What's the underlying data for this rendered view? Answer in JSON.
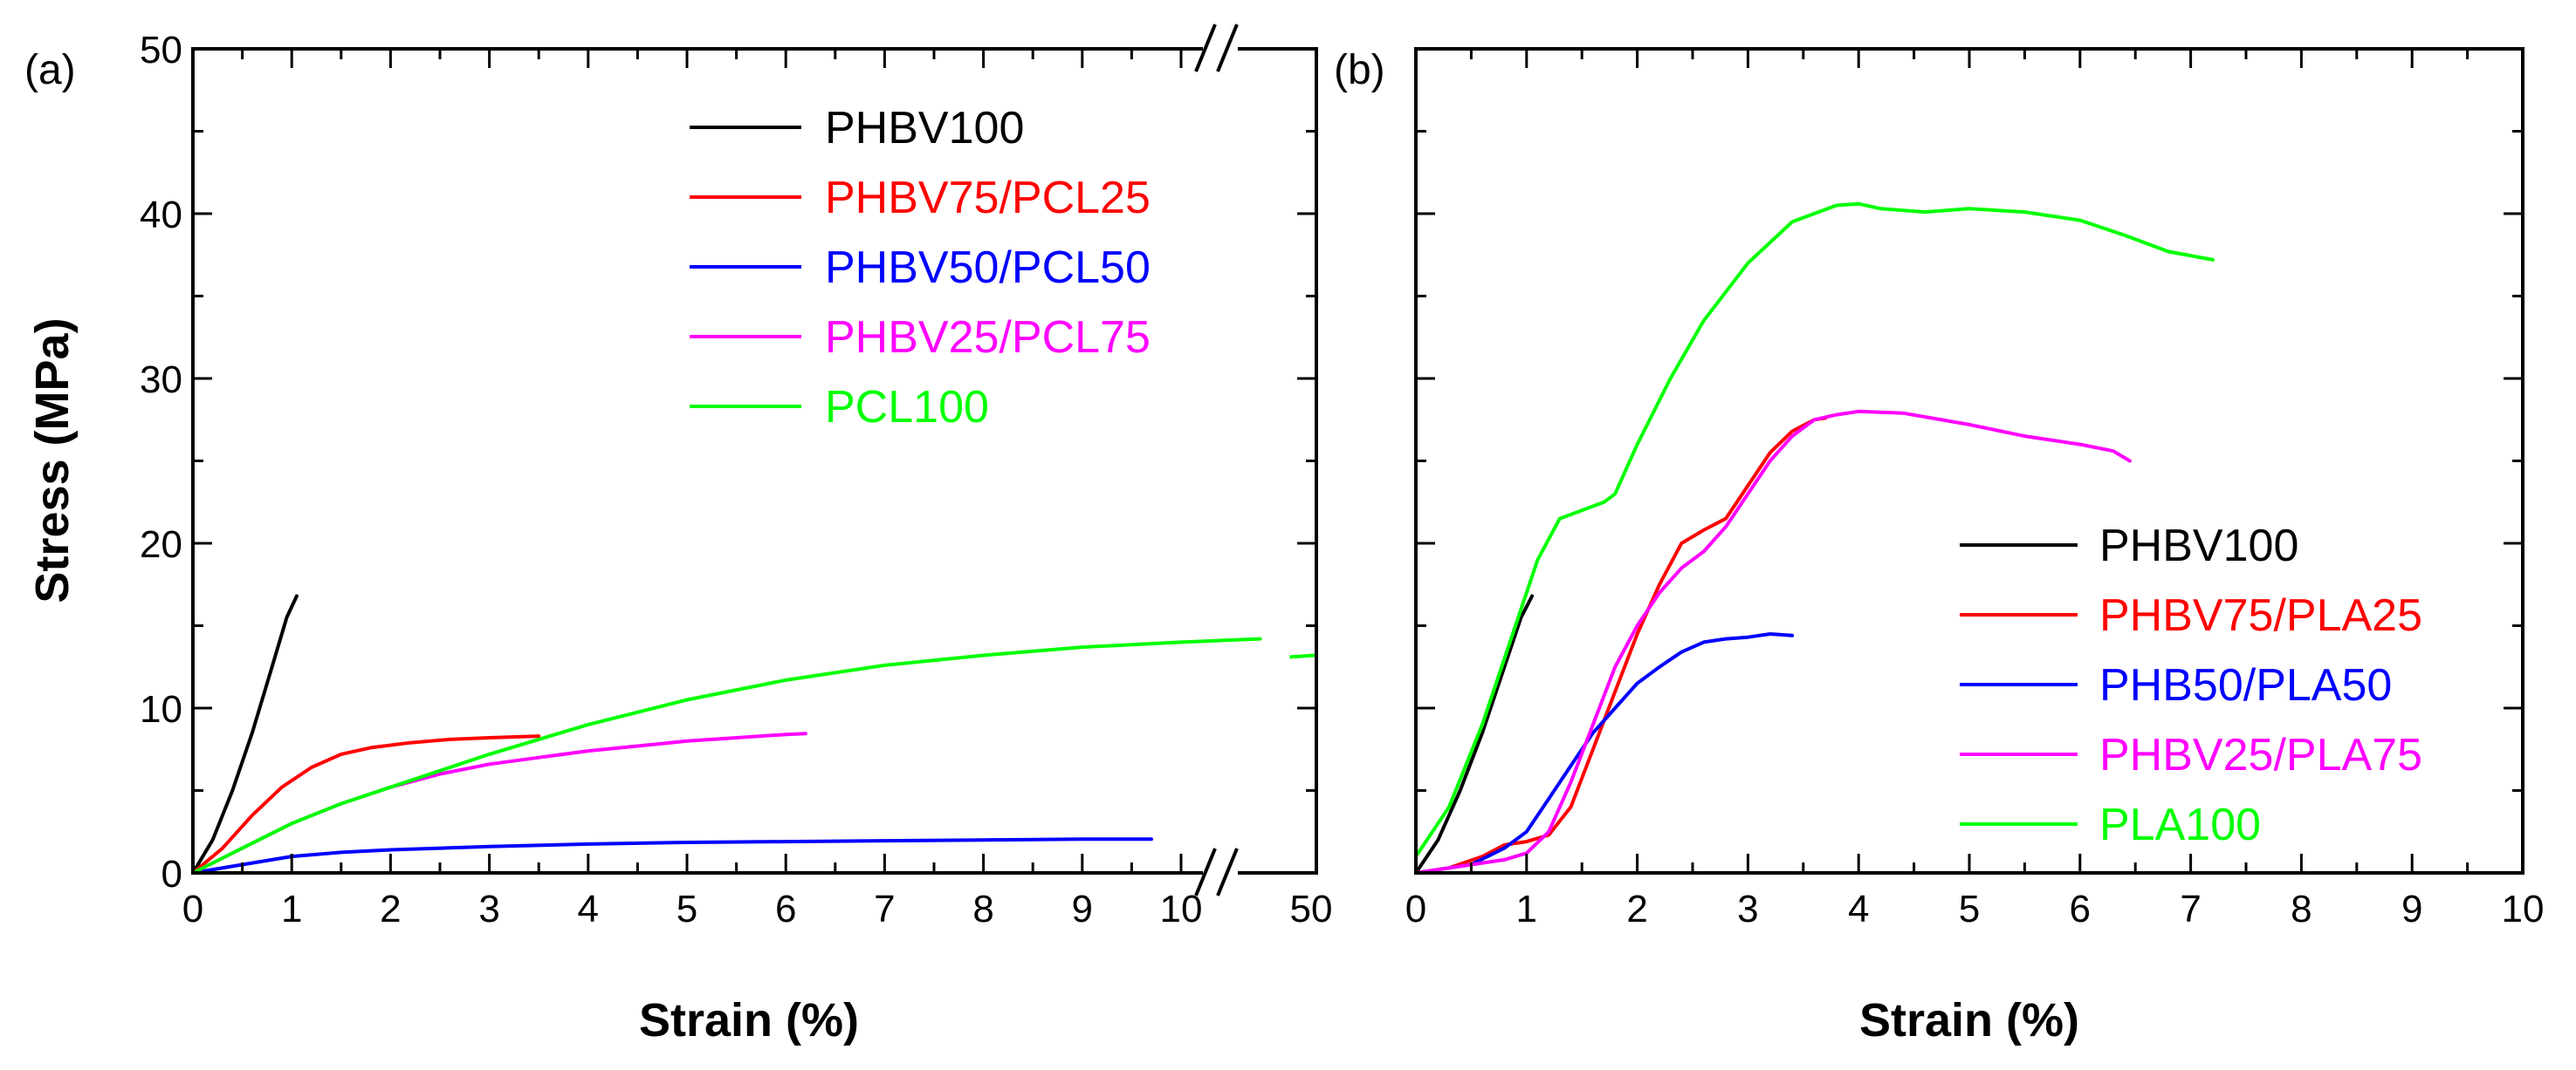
{
  "chart_data": [
    {
      "panel_label": "(a)",
      "type": "line",
      "xlabel": "Strain (%)",
      "ylabel": "Stress (MPa)",
      "xlim": [
        0,
        11.4
      ],
      "ylim": [
        0,
        50
      ],
      "axis_break": {
        "at": 11.0,
        "lower_ticks_end": 10,
        "upper_tick_label": "50"
      },
      "x_tick_labels": [
        "0",
        "1",
        "2",
        "3",
        "4",
        "5",
        "6",
        "7",
        "8",
        "9",
        "10",
        "50"
      ],
      "y_tick_labels": [
        "0",
        "10",
        "20",
        "30",
        "40",
        "50"
      ],
      "legend_position": "top-right",
      "series": [
        {
          "name": "PHBV100",
          "color": "#000000",
          "points": [
            [
              0,
              0
            ],
            [
              0.2,
              2
            ],
            [
              0.4,
              5
            ],
            [
              0.6,
              8.5
            ],
            [
              0.8,
              12.5
            ],
            [
              0.95,
              15.5
            ],
            [
              1.05,
              16.8
            ]
          ]
        },
        {
          "name": "PHBV75/PCL25",
          "color": "#ff0000",
          "points": [
            [
              0,
              0
            ],
            [
              0.3,
              1.5
            ],
            [
              0.6,
              3.5
            ],
            [
              0.9,
              5.2
            ],
            [
              1.2,
              6.4
            ],
            [
              1.5,
              7.2
            ],
            [
              1.8,
              7.6
            ],
            [
              2.2,
              7.9
            ],
            [
              2.6,
              8.1
            ],
            [
              3.0,
              8.2
            ],
            [
              3.5,
              8.3
            ]
          ]
        },
        {
          "name": "PHBV50/PCL50",
          "color": "#0000ff",
          "points": [
            [
              0,
              0
            ],
            [
              0.5,
              0.5
            ],
            [
              1,
              1
            ],
            [
              1.5,
              1.25
            ],
            [
              2,
              1.4
            ],
            [
              3,
              1.6
            ],
            [
              4,
              1.75
            ],
            [
              5,
              1.85
            ],
            [
              6,
              1.9
            ],
            [
              7,
              1.95
            ],
            [
              8,
              2.0
            ],
            [
              9,
              2.05
            ],
            [
              9.7,
              2.05
            ]
          ]
        },
        {
          "name": "PHBV25/PCL75",
          "color": "#ff00ff",
          "points": [
            [
              0,
              0
            ],
            [
              0.5,
              1.5
            ],
            [
              1,
              3
            ],
            [
              1.5,
              4.2
            ],
            [
              2,
              5.2
            ],
            [
              2.5,
              6
            ],
            [
              3,
              6.6
            ],
            [
              3.5,
              7
            ],
            [
              4,
              7.4
            ],
            [
              4.5,
              7.7
            ],
            [
              5,
              8
            ],
            [
              5.5,
              8.2
            ],
            [
              6,
              8.4
            ],
            [
              6.2,
              8.45
            ]
          ]
        },
        {
          "name": "PCL100",
          "color": "#00ff00",
          "points": [
            [
              0,
              0
            ],
            [
              0.5,
              1.5
            ],
            [
              1,
              3
            ],
            [
              1.5,
              4.2
            ],
            [
              2,
              5.2
            ],
            [
              3,
              7.2
            ],
            [
              4,
              9
            ],
            [
              5,
              10.5
            ],
            [
              6,
              11.7
            ],
            [
              7,
              12.6
            ],
            [
              8,
              13.2
            ],
            [
              9,
              13.7
            ],
            [
              10,
              14
            ],
            [
              10.8,
              14.2
            ]
          ],
          "extra_segment": [
            [
              11.1,
              13.1
            ],
            [
              11.35,
              13.2
            ]
          ]
        }
      ]
    },
    {
      "panel_label": "(b)",
      "type": "line",
      "xlabel": "Strain (%)",
      "ylabel": "",
      "xlim": [
        0,
        10
      ],
      "ylim": [
        0,
        50
      ],
      "x_tick_labels": [
        "0",
        "1",
        "2",
        "3",
        "4",
        "5",
        "6",
        "7",
        "8",
        "9",
        "10"
      ],
      "legend_position": "bottom-right",
      "series": [
        {
          "name": "PHBV100",
          "color": "#000000",
          "points": [
            [
              0,
              0
            ],
            [
              0.2,
              2
            ],
            [
              0.4,
              5
            ],
            [
              0.6,
              8.5
            ],
            [
              0.8,
              12.5
            ],
            [
              0.95,
              15.5
            ],
            [
              1.05,
              16.8
            ]
          ]
        },
        {
          "name": "PHBV75/PLA25",
          "color": "#ff0000",
          "points": [
            [
              0,
              0
            ],
            [
              0.3,
              0.3
            ],
            [
              0.6,
              1
            ],
            [
              0.8,
              1.7
            ],
            [
              1.0,
              1.9
            ],
            [
              1.2,
              2.3
            ],
            [
              1.4,
              4
            ],
            [
              1.6,
              7.5
            ],
            [
              1.8,
              11
            ],
            [
              2.0,
              14.5
            ],
            [
              2.2,
              17.5
            ],
            [
              2.4,
              20
            ],
            [
              2.6,
              20.8
            ],
            [
              2.8,
              21.5
            ],
            [
              3.0,
              23.5
            ],
            [
              3.2,
              25.5
            ],
            [
              3.4,
              26.8
            ],
            [
              3.6,
              27.5
            ],
            [
              3.7,
              27.6
            ]
          ]
        },
        {
          "name": "PHB50/PLA50",
          "color": "#0000ff",
          "points": [
            [
              0,
              0
            ],
            [
              0.5,
              0.5
            ],
            [
              0.8,
              1.5
            ],
            [
              1.0,
              2.5
            ],
            [
              1.2,
              4.5
            ],
            [
              1.4,
              6.5
            ],
            [
              1.6,
              8.5
            ],
            [
              1.8,
              10
            ],
            [
              2.0,
              11.5
            ],
            [
              2.2,
              12.5
            ],
            [
              2.4,
              13.4
            ],
            [
              2.6,
              14
            ],
            [
              2.8,
              14.2
            ],
            [
              3.0,
              14.3
            ],
            [
              3.2,
              14.5
            ],
            [
              3.4,
              14.4
            ]
          ]
        },
        {
          "name": "PHBV25/PLA75",
          "color": "#ff00ff",
          "points": [
            [
              0,
              0
            ],
            [
              0.5,
              0.5
            ],
            [
              0.8,
              0.8
            ],
            [
              1.0,
              1.2
            ],
            [
              1.2,
              2.5
            ],
            [
              1.4,
              5.5
            ],
            [
              1.6,
              9
            ],
            [
              1.8,
              12.5
            ],
            [
              2.0,
              15
            ],
            [
              2.2,
              17
            ],
            [
              2.4,
              18.5
            ],
            [
              2.6,
              19.5
            ],
            [
              2.8,
              21
            ],
            [
              3.0,
              23
            ],
            [
              3.2,
              25
            ],
            [
              3.4,
              26.5
            ],
            [
              3.6,
              27.5
            ],
            [
              3.8,
              27.8
            ],
            [
              4.0,
              28
            ],
            [
              4.4,
              27.9
            ],
            [
              5.0,
              27.2
            ],
            [
              5.5,
              26.5
            ],
            [
              6.0,
              26
            ],
            [
              6.3,
              25.6
            ],
            [
              6.45,
              25
            ]
          ]
        },
        {
          "name": "PLA100",
          "color": "#00ff00",
          "points": [
            [
              0,
              1
            ],
            [
              0.3,
              4
            ],
            [
              0.6,
              9
            ],
            [
              0.9,
              15
            ],
            [
              1.1,
              19
            ],
            [
              1.3,
              21.5
            ],
            [
              1.5,
              22
            ],
            [
              1.7,
              22.5
            ],
            [
              1.8,
              23
            ],
            [
              2.0,
              26
            ],
            [
              2.3,
              30
            ],
            [
              2.6,
              33.5
            ],
            [
              3.0,
              37
            ],
            [
              3.4,
              39.5
            ],
            [
              3.8,
              40.5
            ],
            [
              4.0,
              40.6
            ],
            [
              4.2,
              40.3
            ],
            [
              4.6,
              40.1
            ],
            [
              5.0,
              40.3
            ],
            [
              5.5,
              40.1
            ],
            [
              6.0,
              39.6
            ],
            [
              6.4,
              38.7
            ],
            [
              6.8,
              37.7
            ],
            [
              7.2,
              37.2
            ]
          ]
        }
      ]
    }
  ]
}
